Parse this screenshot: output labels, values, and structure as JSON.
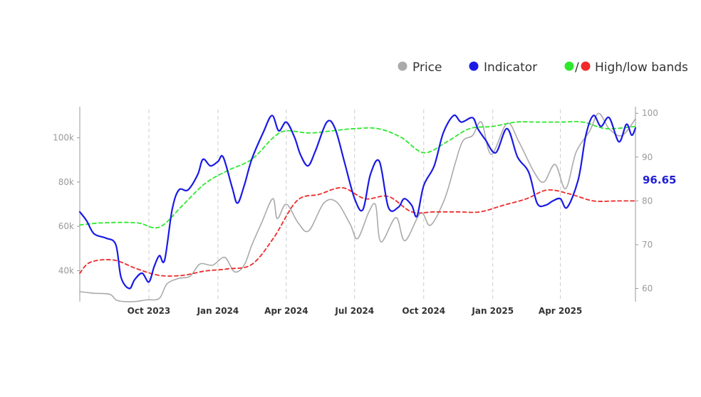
{
  "legend": {
    "price_label": "Price",
    "indicator_label": "Indicator",
    "slash": "/",
    "bands_label": "High/low bands"
  },
  "colors": {
    "price": "#aaaaaa",
    "indicator": "#1a1ae6",
    "high_band": "#2ee82e",
    "low_band": "#ee2a2a",
    "gridline": "#cccccc",
    "axis": "#999999"
  },
  "last_value_label": "96.65",
  "chart_data": {
    "type": "line",
    "x_axis": {
      "type": "date",
      "range": [
        "2023-07-01",
        "2025-07-10"
      ],
      "ticks": [
        {
          "date": "2023-10-01",
          "label": "Oct 2023"
        },
        {
          "date": "2024-01-01",
          "label": "Jan 2024"
        },
        {
          "date": "2024-04-01",
          "label": "Apr 2024"
        },
        {
          "date": "2024-07-01",
          "label": "Jul 2024"
        },
        {
          "date": "2024-10-01",
          "label": "Oct 2024"
        },
        {
          "date": "2025-01-01",
          "label": "Jan 2025"
        },
        {
          "date": "2025-04-01",
          "label": "Apr 2025"
        }
      ],
      "vertical_grid": true
    },
    "y_left": {
      "range": [
        26000,
        114000
      ],
      "ticks": [
        {
          "v": 40000,
          "label": "40k"
        },
        {
          "v": 60000,
          "label": "60k"
        },
        {
          "v": 80000,
          "label": "80k"
        },
        {
          "v": 100000,
          "label": "100k"
        }
      ]
    },
    "y_right": {
      "range": [
        57,
        101.5
      ],
      "ticks": [
        {
          "v": 60,
          "label": "60"
        },
        {
          "v": 70,
          "label": "70"
        },
        {
          "v": 80,
          "label": "80"
        },
        {
          "v": 90,
          "label": "90"
        },
        {
          "v": 100,
          "label": "100"
        }
      ]
    },
    "legend_position": "top-right",
    "series": [
      {
        "name": "Price",
        "axis": "left",
        "style": "solid",
        "points": [
          [
            "2023-07-01",
            30500
          ],
          [
            "2023-07-20",
            29800
          ],
          [
            "2023-08-10",
            29300
          ],
          [
            "2023-08-20",
            26500
          ],
          [
            "2023-09-10",
            26000
          ],
          [
            "2023-09-28",
            26800
          ],
          [
            "2023-10-15",
            27500
          ],
          [
            "2023-10-25",
            34000
          ],
          [
            "2023-11-10",
            36500
          ],
          [
            "2023-11-25",
            37500
          ],
          [
            "2023-12-08",
            43000
          ],
          [
            "2023-12-25",
            42500
          ],
          [
            "2024-01-10",
            46000
          ],
          [
            "2024-01-23",
            39500
          ],
          [
            "2024-02-05",
            42500
          ],
          [
            "2024-02-15",
            51500
          ],
          [
            "2024-02-28",
            61500
          ],
          [
            "2024-03-14",
            72500
          ],
          [
            "2024-03-20",
            63500
          ],
          [
            "2024-04-01",
            70000
          ],
          [
            "2024-04-17",
            61500
          ],
          [
            "2024-05-01",
            58000
          ],
          [
            "2024-05-21",
            70500
          ],
          [
            "2024-06-07",
            71000
          ],
          [
            "2024-06-25",
            61000
          ],
          [
            "2024-07-05",
            54500
          ],
          [
            "2024-07-20",
            66500
          ],
          [
            "2024-07-29",
            69500
          ],
          [
            "2024-08-05",
            53000
          ],
          [
            "2024-08-25",
            64000
          ],
          [
            "2024-09-06",
            53500
          ],
          [
            "2024-09-27",
            66000
          ],
          [
            "2024-10-10",
            60500
          ],
          [
            "2024-10-29",
            72500
          ],
          [
            "2024-11-12",
            88500
          ],
          [
            "2024-11-22",
            98500
          ],
          [
            "2024-12-05",
            101000
          ],
          [
            "2024-12-17",
            107000
          ],
          [
            "2024-12-30",
            92500
          ],
          [
            "2025-01-20",
            106500
          ],
          [
            "2025-02-05",
            98000
          ],
          [
            "2025-02-25",
            84500
          ],
          [
            "2025-03-10",
            80000
          ],
          [
            "2025-03-25",
            88000
          ],
          [
            "2025-04-08",
            77000
          ],
          [
            "2025-04-22",
            93500
          ],
          [
            "2025-05-10",
            103000
          ],
          [
            "2025-05-22",
            111000
          ],
          [
            "2025-06-05",
            104000
          ],
          [
            "2025-06-22",
            101000
          ],
          [
            "2025-07-10",
            108500
          ]
        ]
      },
      {
        "name": "Indicator",
        "axis": "right",
        "style": "solid",
        "points": [
          [
            "2023-07-01",
            77.5
          ],
          [
            "2023-07-10",
            75.5
          ],
          [
            "2023-07-20",
            72.5
          ],
          [
            "2023-08-05",
            71.5
          ],
          [
            "2023-08-18",
            70.0
          ],
          [
            "2023-08-25",
            62.5
          ],
          [
            "2023-09-05",
            60.0
          ],
          [
            "2023-09-12",
            62.0
          ],
          [
            "2023-09-22",
            63.5
          ],
          [
            "2023-10-01",
            61.5
          ],
          [
            "2023-10-08",
            65.0
          ],
          [
            "2023-10-15",
            67.5
          ],
          [
            "2023-10-22",
            66.5
          ],
          [
            "2023-11-01",
            78.0
          ],
          [
            "2023-11-10",
            82.5
          ],
          [
            "2023-11-22",
            82.5
          ],
          [
            "2023-12-05",
            86.0
          ],
          [
            "2023-12-12",
            89.5
          ],
          [
            "2023-12-22",
            88.0
          ],
          [
            "2024-01-01",
            89.0
          ],
          [
            "2024-01-08",
            90.0
          ],
          [
            "2024-01-20",
            83.0
          ],
          [
            "2024-01-27",
            79.5
          ],
          [
            "2024-02-05",
            83.5
          ],
          [
            "2024-02-15",
            89.5
          ],
          [
            "2024-03-01",
            95.5
          ],
          [
            "2024-03-13",
            99.5
          ],
          [
            "2024-03-22",
            96.0
          ],
          [
            "2024-04-01",
            98.0
          ],
          [
            "2024-04-12",
            94.5
          ],
          [
            "2024-04-20",
            90.5
          ],
          [
            "2024-04-30",
            88.0
          ],
          [
            "2024-05-10",
            91.5
          ],
          [
            "2024-05-25",
            98.0
          ],
          [
            "2024-06-05",
            96.5
          ],
          [
            "2024-06-18",
            88.5
          ],
          [
            "2024-07-01",
            80.5
          ],
          [
            "2024-07-12",
            78.0
          ],
          [
            "2024-07-22",
            86.0
          ],
          [
            "2024-08-03",
            89.0
          ],
          [
            "2024-08-15",
            78.5
          ],
          [
            "2024-08-28",
            78.5
          ],
          [
            "2024-09-05",
            80.5
          ],
          [
            "2024-09-15",
            79.0
          ],
          [
            "2024-09-22",
            76.5
          ],
          [
            "2024-10-01",
            83.5
          ],
          [
            "2024-10-15",
            88.0
          ],
          [
            "2024-10-27",
            95.5
          ],
          [
            "2024-11-10",
            99.5
          ],
          [
            "2024-11-20",
            98.0
          ],
          [
            "2024-12-05",
            99.0
          ],
          [
            "2024-12-12",
            96.5
          ],
          [
            "2024-12-22",
            94.0
          ],
          [
            "2025-01-05",
            91.0
          ],
          [
            "2025-01-20",
            96.5
          ],
          [
            "2025-02-03",
            90.0
          ],
          [
            "2025-02-18",
            86.5
          ],
          [
            "2025-03-01",
            79.5
          ],
          [
            "2025-03-12",
            79.0
          ],
          [
            "2025-03-22",
            80.0
          ],
          [
            "2025-04-01",
            80.5
          ],
          [
            "2025-04-10",
            78.5
          ],
          [
            "2025-04-25",
            85.0
          ],
          [
            "2025-05-05",
            95.0
          ],
          [
            "2025-05-15",
            99.5
          ],
          [
            "2025-05-25",
            97.0
          ],
          [
            "2025-06-05",
            99.0
          ],
          [
            "2025-06-18",
            93.5
          ],
          [
            "2025-06-28",
            97.5
          ],
          [
            "2025-07-05",
            95.0
          ],
          [
            "2025-07-10",
            96.65
          ]
        ]
      },
      {
        "name": "High band",
        "axis": "right",
        "style": "dashed",
        "points": [
          [
            "2023-07-01",
            74.5
          ],
          [
            "2023-08-01",
            75.0
          ],
          [
            "2023-09-15",
            75.0
          ],
          [
            "2023-10-15",
            74.0
          ],
          [
            "2023-11-15",
            79.0
          ],
          [
            "2023-12-15",
            84.0
          ],
          [
            "2024-01-15",
            87.0
          ],
          [
            "2024-02-15",
            89.5
          ],
          [
            "2024-03-15",
            94.5
          ],
          [
            "2024-04-01",
            96.0
          ],
          [
            "2024-05-01",
            95.5
          ],
          [
            "2024-06-01",
            96.0
          ],
          [
            "2024-07-01",
            96.5
          ],
          [
            "2024-08-01",
            96.5
          ],
          [
            "2024-09-01",
            94.5
          ],
          [
            "2024-10-01",
            91.0
          ],
          [
            "2024-11-01",
            93.5
          ],
          [
            "2024-12-01",
            96.5
          ],
          [
            "2025-01-01",
            97.0
          ],
          [
            "2025-02-01",
            98.0
          ],
          [
            "2025-03-01",
            98.0
          ],
          [
            "2025-04-01",
            98.0
          ],
          [
            "2025-05-01",
            98.0
          ],
          [
            "2025-06-01",
            96.5
          ],
          [
            "2025-07-10",
            97.0
          ]
        ]
      },
      {
        "name": "Low band",
        "axis": "right",
        "style": "dashed",
        "points": [
          [
            "2023-07-01",
            63.5
          ],
          [
            "2023-07-15",
            66.0
          ],
          [
            "2023-08-15",
            66.5
          ],
          [
            "2023-09-15",
            64.5
          ],
          [
            "2023-10-15",
            63.0
          ],
          [
            "2023-11-15",
            63.0
          ],
          [
            "2023-12-15",
            64.0
          ],
          [
            "2024-01-15",
            64.5
          ],
          [
            "2024-02-15",
            65.5
          ],
          [
            "2024-03-15",
            71.5
          ],
          [
            "2024-04-15",
            80.0
          ],
          [
            "2024-05-15",
            81.5
          ],
          [
            "2024-06-15",
            83.0
          ],
          [
            "2024-07-15",
            80.5
          ],
          [
            "2024-08-15",
            81.0
          ],
          [
            "2024-09-15",
            77.5
          ],
          [
            "2024-10-15",
            77.5
          ],
          [
            "2024-11-15",
            77.5
          ],
          [
            "2024-12-15",
            77.5
          ],
          [
            "2025-01-15",
            79.0
          ],
          [
            "2025-02-15",
            80.5
          ],
          [
            "2025-03-15",
            82.5
          ],
          [
            "2025-04-15",
            81.5
          ],
          [
            "2025-05-15",
            80.0
          ],
          [
            "2025-06-15",
            80.0
          ],
          [
            "2025-07-10",
            80.0
          ]
        ]
      }
    ]
  }
}
